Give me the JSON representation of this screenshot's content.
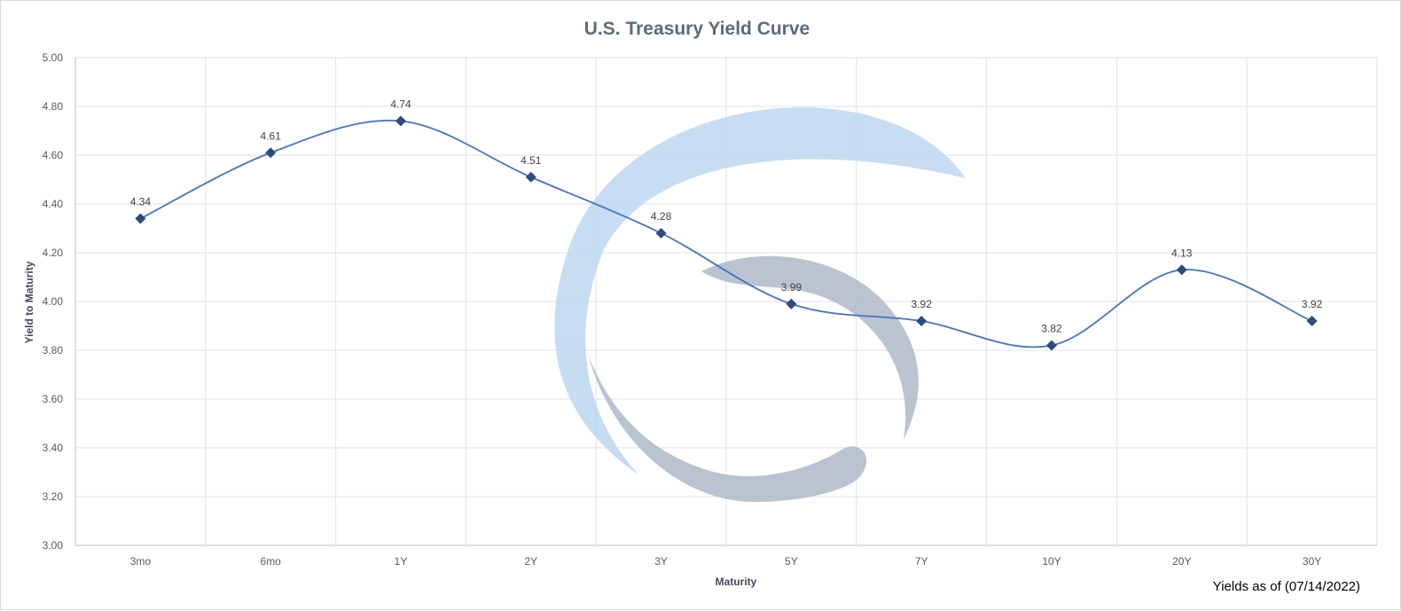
{
  "chart_data": {
    "type": "line",
    "title": "U.S. Treasury Yield Curve",
    "xlabel": "Maturity",
    "ylabel": "Yield to Maturity",
    "categories": [
      "3mo",
      "6mo",
      "1Y",
      "2Y",
      "3Y",
      "5Y",
      "7Y",
      "10Y",
      "20Y",
      "30Y"
    ],
    "values": [
      4.34,
      4.61,
      4.74,
      4.51,
      4.28,
      3.99,
      3.92,
      3.82,
      4.13,
      3.92
    ],
    "data_labels": [
      "4.34",
      "4.61",
      "4.74",
      "4.51",
      "4.28",
      "3.99",
      "3.92",
      "3.82",
      "4.13",
      "3.92"
    ],
    "yticks": [
      "3.00",
      "3.20",
      "3.40",
      "3.60",
      "3.80",
      "4.00",
      "4.20",
      "4.40",
      "4.60",
      "4.80",
      "5.00"
    ],
    "ylim": [
      3.0,
      5.0
    ],
    "grid": true,
    "smooth": true,
    "marker": "diamond",
    "line_color": "#4472c4",
    "marker_color": "#2f4b7c",
    "footnote": "Yields as of (07/14/2022)"
  },
  "watermark": {
    "name": "logo-watermark",
    "colors": [
      "#bdd7ee",
      "#aeb9c8"
    ]
  }
}
